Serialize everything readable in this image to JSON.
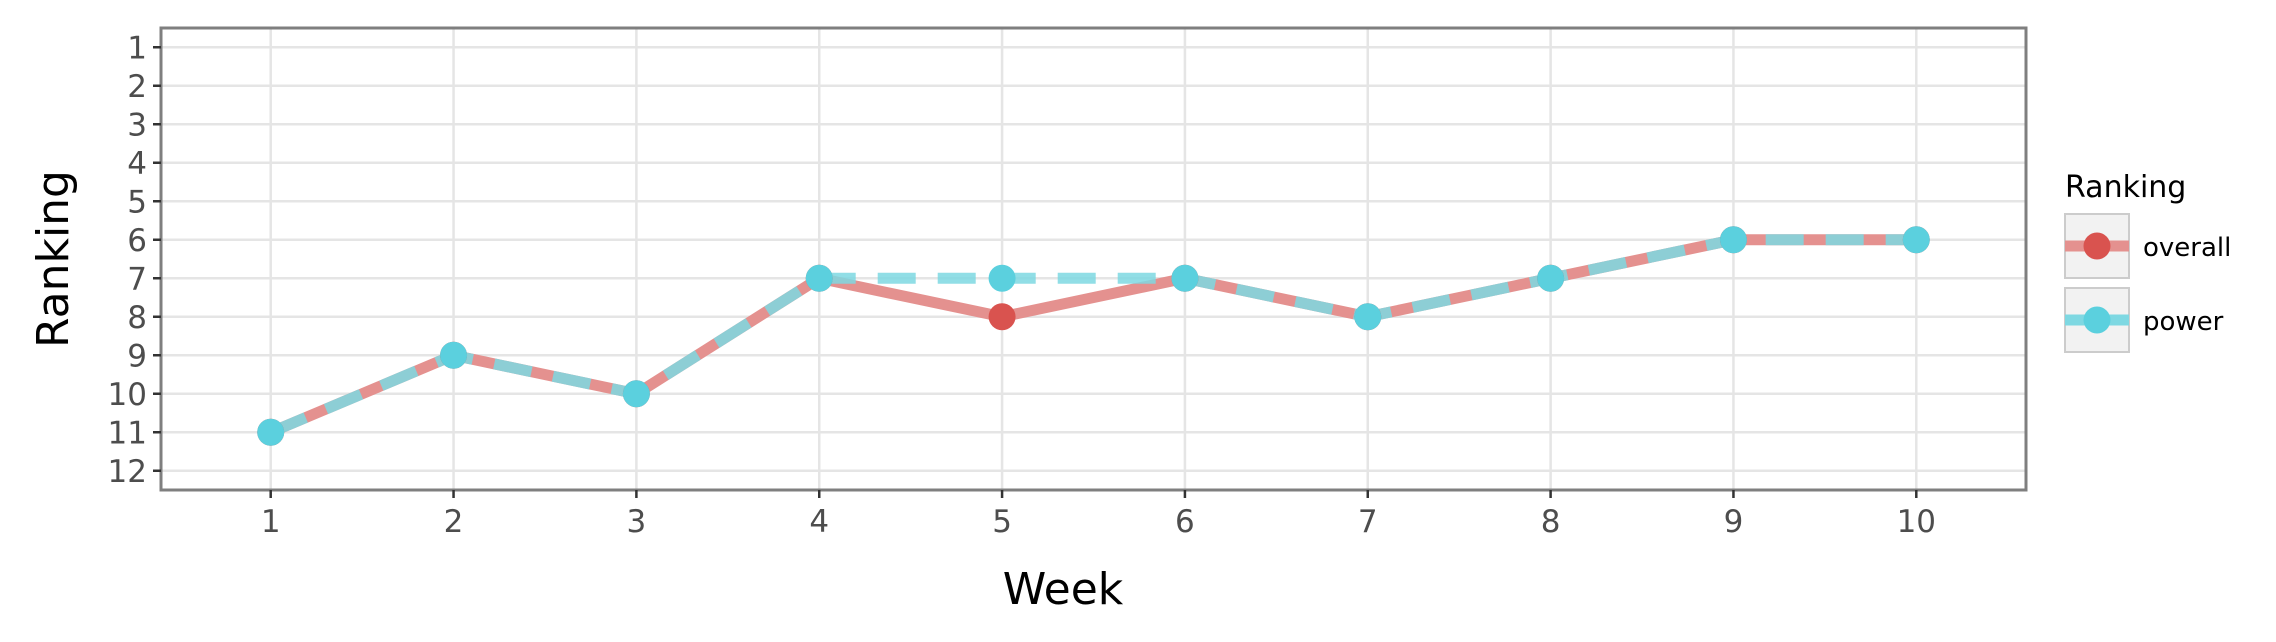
{
  "chart_data": {
    "type": "line",
    "xlabel": "Week",
    "ylabel": "Ranking",
    "x": [
      1,
      2,
      3,
      4,
      5,
      6,
      7,
      8,
      9,
      10
    ],
    "x_ticks": [
      "1",
      "2",
      "3",
      "4",
      "5",
      "6",
      "7",
      "8",
      "9",
      "10"
    ],
    "y_ticks": [
      "1",
      "2",
      "3",
      "4",
      "5",
      "6",
      "7",
      "8",
      "9",
      "10",
      "11",
      "12"
    ],
    "xlim": [
      0.4,
      10.6
    ],
    "ylim": [
      12.5,
      0.5
    ],
    "y_reversed": true,
    "grid": true,
    "legend_position": "right",
    "legend_title": "Ranking",
    "series": [
      {
        "name": "overall",
        "values": [
          11,
          9,
          10,
          7,
          8,
          7,
          8,
          7,
          6,
          6
        ],
        "color": "#d9534f",
        "line_style": "solid"
      },
      {
        "name": "power",
        "values": [
          11,
          9,
          10,
          7,
          7,
          7,
          8,
          7,
          6,
          6
        ],
        "color": "#5bd0de",
        "line_style": "dashed"
      }
    ]
  }
}
